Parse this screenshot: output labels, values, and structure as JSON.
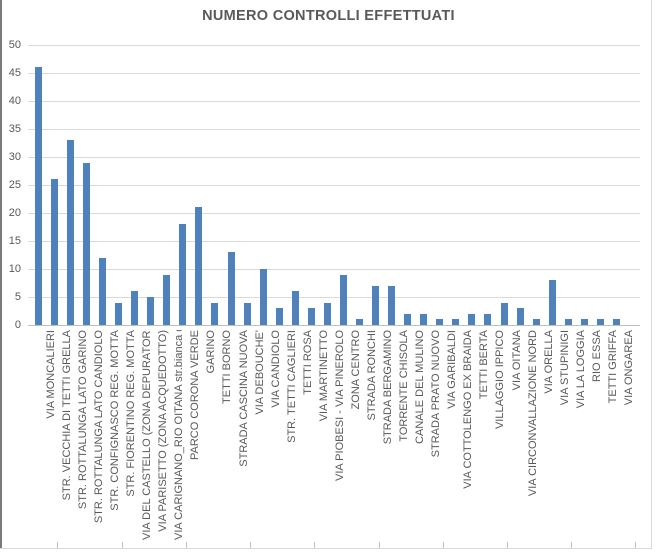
{
  "chart": {
    "title": "NUMERO CONTROLLI EFFETTUATI"
  },
  "chart_data": {
    "type": "bar",
    "title": "NUMERO CONTROLLI EFFETTUATI",
    "xlabel": "",
    "ylabel": "",
    "ylim": [
      0,
      50
    ],
    "ytick_step": 5,
    "yticks": [
      0,
      5,
      10,
      15,
      20,
      25,
      30,
      35,
      40,
      45,
      50
    ],
    "grid": "horizontal",
    "legend": "none",
    "bar_color": "#4F81BD",
    "gridline_color": "#D9D9D9",
    "axis_color": "#BFBFBF",
    "text_color": "#595959",
    "categories": [
      "VIA MONCALIERI",
      "STR. VECCHIA DI TETTI GRELLA",
      "STR. ROTTALUNGA LATO GARINO",
      "STR. ROTTALUNGA LATO CANDIOLO",
      "STR. CONFIGNASCO REG. MOTTA",
      "STR. FIORENTINO REG. MOTTA",
      "VIA DEL CASTELLO (ZONA DEPURATORE)",
      "VIA PARISETTO (ZONA ACQUEDOTTO)",
      "VIA CARIGNANO_RIO OITANA str.bianca di…",
      "PARCO CORONA VERDE",
      "GARINO",
      "TETTI BORNO",
      "STRADA CASCINA NUOVA",
      "VIA DEBOUCHE'",
      "VIA CANDIOLO",
      "STR. TETTI CAGLIERI",
      "TETTI ROSA",
      "VIA MARTINETTO",
      "VIA PIOBESI - VIA PINEROLO",
      "ZONA CENTRO",
      "STRADA RONCHI",
      "STRADA BERGAMINO",
      "TORRENTE CHISOLA",
      "CANALE DEL MULINO",
      "STRADA PRATO NUOVO",
      "VIA GARIBALDI",
      "VIA COTTOLENGO EX BRAIDA",
      "TETTI BERTA",
      "VILLAGGIO IPPICO",
      "VIA OITANA",
      "VIA CIRCONVALLAZIONE NORD",
      "VIA ORELLA",
      "VIA STUPINIGI",
      "VIA LA LOGGIA",
      "RIO ESSA",
      "TETTI GRIFFA",
      "VIA ONGAREA"
    ],
    "values": [
      46,
      26,
      33,
      29,
      12,
      4,
      6,
      5,
      9,
      18,
      21,
      4,
      13,
      4,
      10,
      3,
      6,
      3,
      4,
      9,
      1,
      7,
      7,
      2,
      2,
      1,
      1,
      2,
      2,
      4,
      3,
      1,
      8,
      1,
      1,
      1,
      1
    ]
  }
}
